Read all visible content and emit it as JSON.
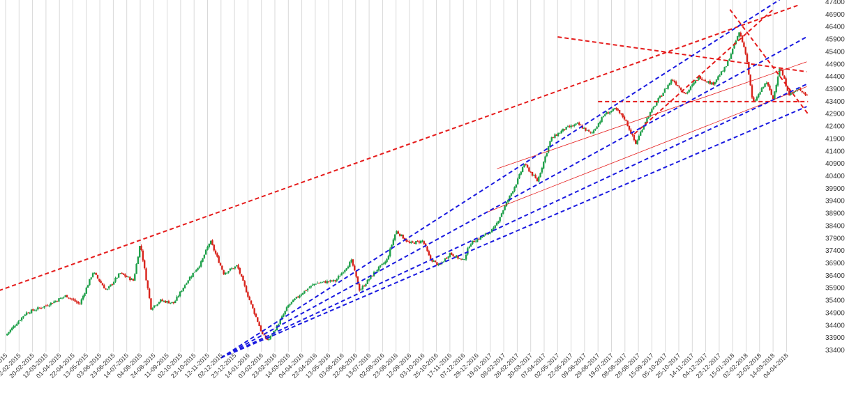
{
  "chart_data": {
    "type": "candlestick",
    "title": "",
    "xlabel": "",
    "ylabel": "",
    "ylim": [
      33400,
      47400
    ],
    "y_ticks": [
      33400,
      33900,
      34400,
      34900,
      35400,
      35900,
      36400,
      36900,
      37400,
      37900,
      38400,
      38900,
      39400,
      39900,
      40400,
      40900,
      41400,
      41900,
      42400,
      42900,
      43400,
      43900,
      44400,
      44900,
      45400,
      45900,
      46400,
      46900,
      47400
    ],
    "x_tick_labels": [
      "12-01-2015",
      "02-02-2015",
      "20-02-2015",
      "12-03-2015",
      "01-04-2015",
      "22-04-2015",
      "13-05-2015",
      "03-06-2015",
      "23-06-2015",
      "14-07-2015",
      "04-08-2015",
      "24-08-2015",
      "11-09-2015",
      "02-10-2015",
      "23-10-2015",
      "12-11-2015",
      "02-12-2015",
      "23-12-2015",
      "14-01-2016",
      "03-02-2016",
      "23-02-2016",
      "14-03-2016",
      "04-04-2016",
      "22-04-2016",
      "13-05-2016",
      "03-06-2016",
      "22-06-2016",
      "13-07-2016",
      "02-08-2016",
      "23-08-2016",
      "12-09-2016",
      "03-10-2016",
      "25-10-2016",
      "17-11-2016",
      "07-12-2016",
      "29-12-2016",
      "19-01-2017",
      "08-02-2017",
      "28-02-2017",
      "20-03-2017",
      "07-04-2017",
      "02-05-2017",
      "22-05-2017",
      "09-06-2017",
      "29-06-2017",
      "19-07-2017",
      "08-08-2017",
      "28-08-2017",
      "15-09-2017",
      "05-10-2017",
      "25-10-2017",
      "14-11-2017",
      "04-12-2017",
      "22-12-2017",
      "15-01-2018",
      "02-02-2018",
      "22-02-2018",
      "14-03-2018",
      "04-04-2018"
    ],
    "price_path": [
      [
        0,
        34000
      ],
      [
        1.5,
        34900
      ],
      [
        3,
        35200
      ],
      [
        4.5,
        35600
      ],
      [
        5.5,
        35250
      ],
      [
        6.5,
        36550
      ],
      [
        7.5,
        35800
      ],
      [
        8.5,
        36500
      ],
      [
        9.5,
        36200
      ],
      [
        10,
        37700
      ],
      [
        10.8,
        35100
      ],
      [
        11.5,
        35400
      ],
      [
        12.5,
        35300
      ],
      [
        13.5,
        36200
      ],
      [
        14.5,
        36900
      ],
      [
        15.2,
        37800
      ],
      [
        16.2,
        36500
      ],
      [
        17.2,
        36800
      ],
      [
        18.2,
        35300
      ],
      [
        18.7,
        34600
      ],
      [
        19.1,
        34000
      ],
      [
        19.5,
        33800
      ],
      [
        20.2,
        34400
      ],
      [
        21,
        35200
      ],
      [
        22,
        35700
      ],
      [
        23,
        36100
      ],
      [
        24.5,
        36200
      ],
      [
        25.7,
        37000
      ],
      [
        26.3,
        35800
      ],
      [
        27.5,
        36600
      ],
      [
        28.3,
        37000
      ],
      [
        29,
        38200
      ],
      [
        30,
        37700
      ],
      [
        31,
        37800
      ],
      [
        31.5,
        37100
      ],
      [
        32.2,
        36800
      ],
      [
        33,
        37300
      ],
      [
        34,
        37000
      ],
      [
        34.5,
        37700
      ],
      [
        35.5,
        38000
      ],
      [
        36.3,
        38300
      ],
      [
        37,
        39100
      ],
      [
        38,
        40200
      ],
      [
        38.5,
        40900
      ],
      [
        39.5,
        40200
      ],
      [
        40.5,
        41900
      ],
      [
        41.5,
        42300
      ],
      [
        42.5,
        42500
      ],
      [
        43.5,
        42100
      ],
      [
        44.5,
        42900
      ],
      [
        45.3,
        43100
      ],
      [
        46,
        42700
      ],
      [
        46.8,
        41700
      ],
      [
        47.5,
        42600
      ],
      [
        48.5,
        43500
      ],
      [
        49.5,
        44300
      ],
      [
        50.5,
        43700
      ],
      [
        51.5,
        44400
      ],
      [
        52.5,
        44100
      ],
      [
        53.5,
        44800
      ],
      [
        54.5,
        46200
      ],
      [
        55,
        45300
      ],
      [
        55.5,
        43300
      ],
      [
        56.5,
        44200
      ],
      [
        57,
        43500
      ],
      [
        57.5,
        44800
      ],
      [
        58.2,
        43700
      ],
      [
        59,
        43900
      ],
      [
        59.6,
        43600
      ]
    ],
    "red_trendlines": [
      {
        "from": [
          -0.5,
          35800
        ],
        "to": [
          59,
          47300
        ],
        "style": "dashed"
      },
      {
        "from": [
          41,
          46000
        ],
        "to": [
          59.5,
          44600
        ],
        "style": "dashed"
      },
      {
        "from": [
          35.5,
          38900
        ],
        "to": [
          59.5,
          44000
        ],
        "style": "thin"
      },
      {
        "from": [
          36.5,
          40700
        ],
        "to": [
          59.5,
          45000
        ],
        "style": "thin"
      },
      {
        "from": [
          46.7,
          42100
        ],
        "to": [
          57,
          47100
        ],
        "style": "dashed"
      },
      {
        "from": [
          53.8,
          47100
        ],
        "to": [
          59.6,
          42900
        ],
        "style": "dashed"
      },
      {
        "from": [
          44,
          43400
        ],
        "to": [
          59.6,
          43400
        ],
        "style": "dashed"
      }
    ],
    "blue_trendlines": [
      {
        "from": [
          16,
          33100
        ],
        "to": [
          57.5,
          47500
        ],
        "style": "dashed"
      },
      {
        "from": [
          16,
          33100
        ],
        "to": [
          59.5,
          46000
        ],
        "style": "dashed"
      },
      {
        "from": [
          16,
          33100
        ],
        "to": [
          59.5,
          44100
        ],
        "style": "dashed"
      },
      {
        "from": [
          16,
          33100
        ],
        "to": [
          59.5,
          43200
        ],
        "style": "dashed"
      }
    ],
    "grid": {
      "vertical": true,
      "horizontal": false
    },
    "colors": {
      "up": "#1fa04a",
      "down": "#d8221a",
      "red_line": "#e51b1b",
      "blue_line": "#1a1ae0",
      "grid": "#d9d9d9",
      "axis_text": "#333333"
    }
  }
}
